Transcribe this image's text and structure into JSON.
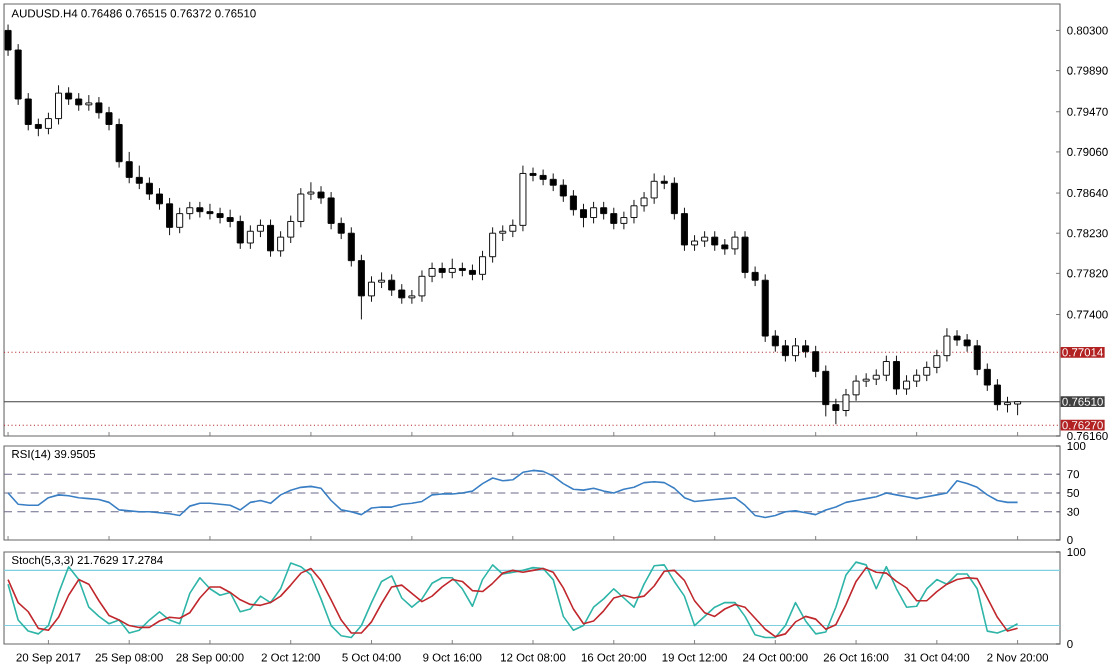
{
  "chart_data": [
    {
      "type": "candlestick",
      "title": "AUDUSD.H4 0.76486 0.76515 0.76372 0.76510",
      "categories": [
        null,
        null,
        null,
        null,
        null,
        null,
        null,
        null,
        null,
        null,
        null,
        null,
        null,
        null,
        null,
        null,
        null,
        null,
        null,
        null,
        null,
        null,
        null,
        null,
        null,
        null,
        null,
        null,
        null,
        null,
        null,
        null,
        null,
        null,
        null,
        null,
        null,
        null,
        null,
        null,
        null,
        null,
        null,
        null,
        null,
        null,
        null,
        null,
        null,
        null,
        null,
        null,
        null,
        null,
        null,
        null,
        null,
        null,
        null,
        null,
        null,
        null,
        null,
        null,
        null,
        null,
        null,
        null,
        null,
        null,
        null,
        null,
        null,
        null,
        null,
        null,
        null,
        null,
        null,
        null,
        null,
        null,
        null,
        null,
        null,
        null,
        null,
        null,
        null,
        null,
        null,
        null,
        null,
        null,
        null,
        null,
        null,
        null,
        null,
        null,
        null
      ],
      "ohlc": [
        [
          0.803,
          0.8036,
          0.8004,
          0.801
        ],
        [
          0.801,
          0.8016,
          0.7954,
          0.796
        ],
        [
          0.796,
          0.7966,
          0.7928,
          0.7934
        ],
        [
          0.7934,
          0.794,
          0.7922,
          0.793
        ],
        [
          0.793,
          0.7946,
          0.7924,
          0.794
        ],
        [
          0.794,
          0.7974,
          0.7934,
          0.7966
        ],
        [
          0.7966,
          0.7972,
          0.7954,
          0.796
        ],
        [
          0.796,
          0.7966,
          0.7948,
          0.7954
        ],
        [
          0.7954,
          0.7964,
          0.7948,
          0.7956
        ],
        [
          0.7956,
          0.7962,
          0.794,
          0.7946
        ],
        [
          0.7946,
          0.7952,
          0.7928,
          0.7934
        ],
        [
          0.7934,
          0.794,
          0.789,
          0.7896
        ],
        [
          0.7896,
          0.7906,
          0.7874,
          0.788
        ],
        [
          0.788,
          0.7892,
          0.7868,
          0.7874
        ],
        [
          0.7874,
          0.788,
          0.7857,
          0.7863
        ],
        [
          0.7863,
          0.7869,
          0.7847,
          0.7853
        ],
        [
          0.7853,
          0.7859,
          0.7821,
          0.7829
        ],
        [
          0.7829,
          0.7849,
          0.7823,
          0.7843
        ],
        [
          0.7843,
          0.7855,
          0.7837,
          0.7849
        ],
        [
          0.7849,
          0.7855,
          0.7839,
          0.7845
        ],
        [
          0.7845,
          0.7853,
          0.7837,
          0.7843
        ],
        [
          0.7843,
          0.7849,
          0.7833,
          0.7839
        ],
        [
          0.7839,
          0.7847,
          0.7829,
          0.7835
        ],
        [
          0.7835,
          0.7841,
          0.7807,
          0.7813
        ],
        [
          0.7813,
          0.7831,
          0.7807,
          0.7825
        ],
        [
          0.7825,
          0.7837,
          0.7819,
          0.7831
        ],
        [
          0.7831,
          0.7837,
          0.7799,
          0.7805
        ],
        [
          0.7805,
          0.7825,
          0.7799,
          0.7819
        ],
        [
          0.7819,
          0.7841,
          0.7813,
          0.7835
        ],
        [
          0.7835,
          0.7869,
          0.7829,
          0.7863
        ],
        [
          0.7863,
          0.7875,
          0.7857,
          0.7865
        ],
        [
          0.7865,
          0.7871,
          0.7853,
          0.7859
        ],
        [
          0.7859,
          0.7865,
          0.7827,
          0.7833
        ],
        [
          0.7833,
          0.7839,
          0.7817,
          0.7823
        ],
        [
          0.7823,
          0.7829,
          0.7789,
          0.7795
        ],
        [
          0.7795,
          0.7801,
          0.7735,
          0.7759
        ],
        [
          0.7759,
          0.7779,
          0.7753,
          0.7773
        ],
        [
          0.7773,
          0.7783,
          0.7767,
          0.7775
        ],
        [
          0.7775,
          0.7781,
          0.7759,
          0.7765
        ],
        [
          0.7765,
          0.7771,
          0.7751,
          0.7757
        ],
        [
          0.7757,
          0.7765,
          0.7751,
          0.7759
        ],
        [
          0.7759,
          0.7785,
          0.7753,
          0.7779
        ],
        [
          0.7779,
          0.7793,
          0.7773,
          0.7787
        ],
        [
          0.7787,
          0.7793,
          0.7777,
          0.7783
        ],
        [
          0.7783,
          0.7797,
          0.7777,
          0.7787
        ],
        [
          0.7787,
          0.7793,
          0.7779,
          0.7785
        ],
        [
          0.7785,
          0.7791,
          0.7775,
          0.7781
        ],
        [
          0.7781,
          0.7805,
          0.7775,
          0.7799
        ],
        [
          0.7799,
          0.7829,
          0.7793,
          0.7823
        ],
        [
          0.7823,
          0.7831,
          0.7815,
          0.7825
        ],
        [
          0.7825,
          0.7837,
          0.7819,
          0.7831
        ],
        [
          0.7831,
          0.7892,
          0.7825,
          0.7884
        ],
        [
          0.7884,
          0.789,
          0.7876,
          0.7882
        ],
        [
          0.7882,
          0.7888,
          0.7872,
          0.7878
        ],
        [
          0.7878,
          0.7884,
          0.7866,
          0.7872
        ],
        [
          0.7872,
          0.7878,
          0.7855,
          0.7861
        ],
        [
          0.7861,
          0.7867,
          0.7841,
          0.7847
        ],
        [
          0.7847,
          0.7853,
          0.7829,
          0.7839
        ],
        [
          0.7839,
          0.7855,
          0.7833,
          0.7849
        ],
        [
          0.7849,
          0.7855,
          0.7837,
          0.7843
        ],
        [
          0.7843,
          0.7849,
          0.7827,
          0.7833
        ],
        [
          0.7833,
          0.7845,
          0.7827,
          0.7839
        ],
        [
          0.7839,
          0.7857,
          0.7833,
          0.7851
        ],
        [
          0.7851,
          0.7865,
          0.7845,
          0.7859
        ],
        [
          0.7859,
          0.7884,
          0.7853,
          0.7876
        ],
        [
          0.7876,
          0.7882,
          0.7868,
          0.7874
        ],
        [
          0.7874,
          0.788,
          0.7837,
          0.7843
        ],
        [
          0.7843,
          0.7849,
          0.7805,
          0.7811
        ],
        [
          0.7811,
          0.7821,
          0.7805,
          0.7815
        ],
        [
          0.7815,
          0.7825,
          0.7809,
          0.7819
        ],
        [
          0.7819,
          0.7825,
          0.7805,
          0.7811
        ],
        [
          0.7811,
          0.7817,
          0.7801,
          0.7807
        ],
        [
          0.7807,
          0.7825,
          0.7801,
          0.7819
        ],
        [
          0.7819,
          0.7825,
          0.7777,
          0.7783
        ],
        [
          0.7783,
          0.7789,
          0.7769,
          0.7775
        ],
        [
          0.7775,
          0.7781,
          0.7712,
          0.7718
        ],
        [
          0.7718,
          0.7724,
          0.7702,
          0.7708
        ],
        [
          0.7708,
          0.7714,
          0.7692,
          0.7698
        ],
        [
          0.7698,
          0.7716,
          0.7692,
          0.7708
        ],
        [
          0.7708,
          0.7714,
          0.7696,
          0.7702
        ],
        [
          0.7702,
          0.7708,
          0.7676,
          0.7682
        ],
        [
          0.7682,
          0.7688,
          0.7636,
          0.7648
        ],
        [
          0.7648,
          0.7654,
          0.7628,
          0.7642
        ],
        [
          0.7642,
          0.7664,
          0.7636,
          0.7658
        ],
        [
          0.7658,
          0.7678,
          0.7652,
          0.7672
        ],
        [
          0.7672,
          0.768,
          0.7666,
          0.7674
        ],
        [
          0.7674,
          0.7684,
          0.7668,
          0.7678
        ],
        [
          0.7678,
          0.7698,
          0.7672,
          0.7692
        ],
        [
          0.7692,
          0.7698,
          0.7658,
          0.7664
        ],
        [
          0.7664,
          0.7678,
          0.7658,
          0.7672
        ],
        [
          0.7672,
          0.7684,
          0.7666,
          0.7678
        ],
        [
          0.7678,
          0.7692,
          0.7672,
          0.7686
        ],
        [
          0.7686,
          0.7704,
          0.768,
          0.7698
        ],
        [
          0.7698,
          0.7726,
          0.7692,
          0.7718
        ],
        [
          0.7718,
          0.7724,
          0.7708,
          0.7714
        ],
        [
          0.7714,
          0.772,
          0.7702,
          0.7708
        ],
        [
          0.7708,
          0.7714,
          0.7678,
          0.7684
        ],
        [
          0.7684,
          0.769,
          0.7662,
          0.7668
        ],
        [
          0.7668,
          0.7674,
          0.7642,
          0.7648
        ],
        [
          0.7648,
          0.7656,
          0.764,
          0.765
        ],
        [
          0.76486,
          0.76515,
          0.76372,
          0.7651
        ]
      ],
      "ylim": [
        0.7616,
        0.8057
      ],
      "yticks": [
        {
          "value": 0.803,
          "label": "0.80300"
        },
        {
          "value": 0.7989,
          "label": "0.79890"
        },
        {
          "value": 0.7947,
          "label": "0.79470"
        },
        {
          "value": 0.7906,
          "label": "0.79060"
        },
        {
          "value": 0.7864,
          "label": "0.78640"
        },
        {
          "value": 0.7823,
          "label": "0.78230"
        },
        {
          "value": 0.7782,
          "label": "0.77820"
        },
        {
          "value": 0.774,
          "label": "0.77400"
        },
        {
          "value": 0.7616,
          "label": "0.76160"
        }
      ],
      "ref_lines": [
        {
          "axis": "y",
          "value": 0.77014,
          "label": "0.77014",
          "color": "#b22222",
          "line_style": "dotted"
        },
        {
          "axis": "y",
          "value": 0.7651,
          "label": "0.76510",
          "color": "#404040",
          "line_style": "solid"
        },
        {
          "axis": "y",
          "value": 0.7627,
          "label": "0.76270",
          "color": "#b22222",
          "line_style": "dotted"
        }
      ],
      "tick_labels": "y"
    },
    {
      "type": "line",
      "title": "RSI(14) 39.9505",
      "categories": [
        null,
        null,
        null,
        null,
        null,
        null,
        null,
        null,
        null,
        null,
        null,
        null,
        null,
        null,
        null,
        null,
        null,
        null,
        null,
        null,
        null,
        null,
        null,
        null,
        null,
        null,
        null,
        null,
        null,
        null,
        null,
        null,
        null,
        null,
        null,
        null,
        null,
        null,
        null,
        null,
        null,
        null,
        null,
        null,
        null,
        null,
        null,
        null,
        null,
        null,
        null,
        null,
        null,
        null,
        null,
        null,
        null,
        null,
        null,
        null,
        null,
        null,
        null,
        null,
        null,
        null,
        null,
        null,
        null,
        null,
        null,
        null,
        null,
        null,
        null,
        null,
        null,
        null,
        null,
        null,
        null,
        null,
        null,
        null,
        null,
        null,
        null,
        null,
        null,
        null,
        null,
        null,
        null,
        null,
        null,
        null,
        null,
        null,
        null,
        null,
        null
      ],
      "series": [
        {
          "color": "#3a7fc4",
          "values": [
            50,
            38,
            37,
            37,
            45,
            48,
            47,
            45,
            44,
            43,
            40,
            32,
            31,
            30,
            30,
            29,
            28,
            26,
            36,
            39,
            39,
            38,
            37,
            32,
            40,
            42,
            39,
            48,
            53,
            56,
            57,
            55,
            42,
            32,
            30,
            27,
            34,
            35,
            35,
            38,
            39,
            41,
            48,
            49,
            49,
            50,
            52,
            60,
            66,
            63,
            64,
            72,
            74,
            73,
            68,
            60,
            54,
            53,
            55,
            52,
            50,
            54,
            56,
            61,
            62,
            61,
            55,
            45,
            41,
            42,
            43,
            44,
            45,
            37,
            26,
            24,
            26,
            30,
            31,
            29,
            27,
            32,
            35,
            40,
            42,
            44,
            46,
            50,
            48,
            46,
            44,
            46,
            48,
            50,
            63,
            60,
            56,
            48,
            42,
            40,
            40
          ]
        }
      ],
      "ylim": [
        0,
        100
      ],
      "yticks": [
        0,
        30,
        50,
        70,
        100
      ],
      "ref_lines": [
        {
          "axis": "y",
          "value": 30,
          "color": "#6a6a8a",
          "line_style": "dashed"
        },
        {
          "axis": "y",
          "value": 50,
          "color": "#6a6a8a",
          "line_style": "dashed"
        },
        {
          "axis": "y",
          "value": 70,
          "color": "#6a6a8a",
          "line_style": "dashed"
        }
      ],
      "tick_labels": "y"
    },
    {
      "type": "line",
      "title": "Stoch(5,3,3) 21.7629 17.2784",
      "categories": [
        null,
        null,
        null,
        null,
        "20 Sep 2017",
        null,
        null,
        null,
        null,
        null,
        null,
        null,
        "25 Sep 08:00",
        null,
        null,
        null,
        null,
        null,
        null,
        null,
        "28 Sep 00:00",
        null,
        null,
        null,
        null,
        null,
        null,
        null,
        "2 Oct 12:00",
        null,
        null,
        null,
        null,
        null,
        null,
        null,
        "5 Oct 04:00",
        null,
        null,
        null,
        null,
        null,
        null,
        null,
        "9 Oct 16:00",
        null,
        null,
        null,
        null,
        null,
        null,
        null,
        "12 Oct 08:00",
        null,
        null,
        null,
        null,
        null,
        null,
        null,
        "16 Oct 20:00",
        null,
        null,
        null,
        null,
        null,
        null,
        null,
        "19 Oct 12:00",
        null,
        null,
        null,
        null,
        null,
        null,
        null,
        "24 Oct 00:00",
        null,
        null,
        null,
        null,
        null,
        null,
        null,
        "26 Oct 16:00",
        null,
        null,
        null,
        null,
        null,
        null,
        null,
        "31 Oct 04:00",
        null,
        null,
        null,
        null,
        null,
        null,
        null,
        "2 Nov 20:00"
      ],
      "series": [
        {
          "color": "#2fb5a8",
          "values": [
            65,
            26,
            14,
            11,
            20,
            55,
            84,
            70,
            40,
            30,
            22,
            26,
            12,
            15,
            26,
            35,
            26,
            22,
            55,
            72,
            60,
            53,
            56,
            35,
            38,
            52,
            45,
            60,
            88,
            84,
            75,
            49,
            20,
            9,
            7,
            20,
            45,
            68,
            74,
            50,
            40,
            49,
            66,
            72,
            72,
            60,
            41,
            70,
            86,
            76,
            78,
            80,
            83,
            82,
            70,
            30,
            15,
            20,
            40,
            49,
            60,
            50,
            40,
            65,
            85,
            86,
            68,
            52,
            20,
            30,
            40,
            45,
            45,
            30,
            10,
            7,
            7,
            20,
            45,
            25,
            11,
            13,
            40,
            75,
            89,
            86,
            60,
            84,
            60,
            40,
            41,
            60,
            70,
            65,
            76,
            76,
            60,
            14,
            12,
            16,
            22
          ]
        },
        {
          "color": "#c0282d",
          "values": [
            70,
            45,
            35,
            17,
            15,
            29,
            53,
            70,
            65,
            47,
            31,
            26,
            20,
            18,
            18,
            25,
            29,
            28,
            34,
            50,
            62,
            62,
            56,
            48,
            43,
            42,
            45,
            52,
            64,
            77,
            82,
            69,
            48,
            26,
            12,
            12,
            24,
            44,
            62,
            64,
            55,
            46,
            52,
            62,
            70,
            68,
            58,
            57,
            66,
            77,
            80,
            78,
            80,
            82,
            78,
            61,
            38,
            22,
            25,
            36,
            50,
            53,
            50,
            52,
            63,
            79,
            80,
            69,
            47,
            34,
            30,
            38,
            43,
            40,
            28,
            16,
            8,
            11,
            24,
            30,
            27,
            16,
            21,
            43,
            68,
            83,
            78,
            77,
            68,
            61,
            47,
            47,
            57,
            65,
            70,
            72,
            71,
            50,
            29,
            14,
            17
          ]
        }
      ],
      "ylim": [
        0,
        100
      ],
      "yticks": [
        0,
        100
      ],
      "ref_lines": [
        {
          "axis": "y",
          "value": 20,
          "color": "#7ecfe0",
          "line_style": "solid"
        },
        {
          "axis": "y",
          "value": 80,
          "color": "#7ecfe0",
          "line_style": "solid"
        }
      ]
    }
  ]
}
